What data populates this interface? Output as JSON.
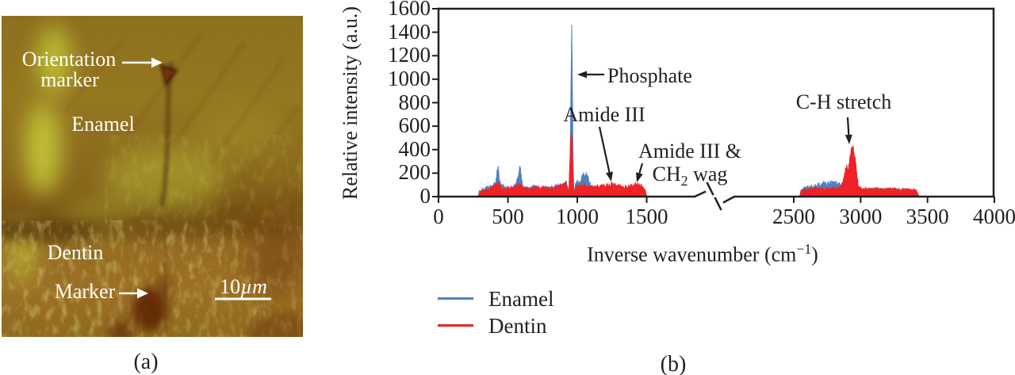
{
  "panel_a": {
    "caption": "(a)",
    "labels": {
      "orientation_line1": "Orientation",
      "orientation_line2": "marker",
      "enamel": "Enamel",
      "dentin": "Dentin",
      "marker": "Marker",
      "scale_value": "10",
      "scale_unit": "µm"
    },
    "palette": {
      "base_olive": "#8d6f1e",
      "highlight_yellow_green": "#c7cc3b",
      "shadow_brown": "#5c2406",
      "label_color": "#ffffff"
    }
  },
  "panel_b": {
    "caption": "(b)"
  },
  "chart_data": {
    "type": "line",
    "title": "",
    "xlabel": "Inverse wavenumber (cm−1)",
    "xlabel_parts": {
      "pre": "Inverse wavenumber (cm",
      "sup": "−1",
      "post": ")"
    },
    "ylabel": "Relative intensity (a.u.)",
    "ylim": [
      0,
      1600
    ],
    "yticks": [
      0,
      200,
      400,
      600,
      800,
      1000,
      1200,
      1400,
      1600
    ],
    "xticks": [
      0,
      500,
      1000,
      1500,
      2500,
      3000,
      3500,
      4000
    ],
    "axis_break": {
      "between": [
        1500,
        2500
      ]
    },
    "grid": false,
    "legend_position": "below-left",
    "legend": [
      {
        "name": "Enamel",
        "color": "#4f81bd"
      },
      {
        "name": "Dentin",
        "color": "#ee2227"
      }
    ],
    "annotations": [
      {
        "id": "phosphate",
        "label": "Phosphate",
        "target_cm": 960,
        "target_value": 1040
      },
      {
        "id": "amide3",
        "label": "Amide III",
        "target_cm": 1250,
        "target_value": 90
      },
      {
        "id": "amide3-ch2",
        "line1": "Amide III &",
        "line2_pre": "CH",
        "line2_sub": "2",
        "line2_post": " wag",
        "target_cm": 1430,
        "target_value": 90
      },
      {
        "id": "ch-stretch",
        "label": "C-H stretch",
        "target_cm": 2940,
        "target_value": 420
      }
    ],
    "series": [
      {
        "name": "Enamel",
        "color": "#4f81bd",
        "segments": [
          [
            [
              285,
              8
            ],
            [
              295,
              45
            ],
            [
              315,
              60
            ],
            [
              340,
              68
            ],
            [
              365,
              75
            ],
            [
              395,
              85
            ],
            [
              412,
              120
            ],
            [
              425,
              230
            ],
            [
              430,
              255
            ],
            [
              437,
              140
            ],
            [
              450,
              95
            ],
            [
              465,
              80
            ],
            [
              480,
              72
            ],
            [
              495,
              78
            ],
            [
              510,
              70
            ],
            [
              525,
              82
            ],
            [
              545,
              85
            ],
            [
              560,
              110
            ],
            [
              572,
              150
            ],
            [
              582,
              235
            ],
            [
              590,
              245
            ],
            [
              598,
              140
            ],
            [
              608,
              90
            ],
            [
              625,
              72
            ],
            [
              645,
              70
            ],
            [
              665,
              78
            ],
            [
              685,
              85
            ],
            [
              705,
              78
            ],
            [
              725,
              72
            ],
            [
              745,
              68
            ],
            [
              765,
              78
            ],
            [
              785,
              72
            ],
            [
              805,
              68
            ],
            [
              825,
              78
            ],
            [
              845,
              85
            ],
            [
              865,
              88
            ],
            [
              885,
              95
            ],
            [
              905,
              108
            ],
            [
              918,
              125
            ],
            [
              928,
              95
            ],
            [
              936,
              25
            ],
            [
              944,
              70
            ],
            [
              950,
              420
            ],
            [
              955,
              950
            ],
            [
              960,
              1440
            ],
            [
              964,
              1000
            ],
            [
              969,
              420
            ],
            [
              974,
              80
            ],
            [
              980,
              25
            ],
            [
              988,
              95
            ],
            [
              1000,
              120
            ],
            [
              1012,
              105
            ],
            [
              1025,
              135
            ],
            [
              1038,
              175
            ],
            [
              1048,
              205
            ],
            [
              1058,
              165
            ],
            [
              1068,
              190
            ],
            [
              1078,
              150
            ],
            [
              1088,
              110
            ],
            [
              1100,
              88
            ],
            [
              1115,
              75
            ],
            [
              1135,
              68
            ],
            [
              1155,
              65
            ],
            [
              1175,
              60
            ],
            [
              1195,
              58
            ],
            [
              1215,
              62
            ],
            [
              1235,
              68
            ],
            [
              1255,
              72
            ],
            [
              1275,
              68
            ],
            [
              1295,
              62
            ],
            [
              1315,
              58
            ],
            [
              1335,
              58
            ],
            [
              1355,
              58
            ],
            [
              1375,
              60
            ],
            [
              1395,
              62
            ],
            [
              1415,
              68
            ],
            [
              1435,
              72
            ],
            [
              1455,
              68
            ],
            [
              1475,
              58
            ],
            [
              1490,
              40
            ],
            [
              1500,
              8
            ]
          ],
          [
            [
              2545,
              8
            ],
            [
              2555,
              55
            ],
            [
              2575,
              65
            ],
            [
              2600,
              72
            ],
            [
              2630,
              80
            ],
            [
              2660,
              88
            ],
            [
              2690,
              95
            ],
            [
              2720,
              105
            ],
            [
              2750,
              112
            ],
            [
              2780,
              115
            ],
            [
              2800,
              112
            ],
            [
              2820,
              108
            ],
            [
              2845,
              100
            ],
            [
              2865,
              92
            ],
            [
              2885,
              82
            ],
            [
              2905,
              72
            ],
            [
              2925,
              66
            ],
            [
              2945,
              62
            ],
            [
              2965,
              60
            ],
            [
              2985,
              58
            ],
            [
              3010,
              58
            ],
            [
              3040,
              60
            ],
            [
              3070,
              62
            ],
            [
              3100,
              64
            ],
            [
              3130,
              60
            ],
            [
              3160,
              58
            ],
            [
              3190,
              55
            ],
            [
              3220,
              58
            ],
            [
              3250,
              60
            ],
            [
              3280,
              55
            ],
            [
              3310,
              55
            ],
            [
              3340,
              52
            ],
            [
              3370,
              52
            ],
            [
              3400,
              50
            ],
            [
              3420,
              42
            ],
            [
              3435,
              8
            ]
          ]
        ]
      },
      {
        "name": "Dentin",
        "color": "#ee2227",
        "segments": [
          [
            [
              292,
              6
            ],
            [
              300,
              35
            ],
            [
              320,
              52
            ],
            [
              345,
              60
            ],
            [
              370,
              68
            ],
            [
              395,
              80
            ],
            [
              412,
              100
            ],
            [
              425,
              128
            ],
            [
              432,
              115
            ],
            [
              445,
              85
            ],
            [
              460,
              68
            ],
            [
              475,
              62
            ],
            [
              490,
              66
            ],
            [
              505,
              70
            ],
            [
              520,
              74
            ],
            [
              535,
              78
            ],
            [
              550,
              82
            ],
            [
              565,
              90
            ],
            [
              578,
              100
            ],
            [
              590,
              88
            ],
            [
              605,
              72
            ],
            [
              622,
              64
            ],
            [
              640,
              62
            ],
            [
              658,
              68
            ],
            [
              676,
              74
            ],
            [
              694,
              78
            ],
            [
              712,
              74
            ],
            [
              730,
              70
            ],
            [
              748,
              72
            ],
            [
              766,
              70
            ],
            [
              784,
              68
            ],
            [
              802,
              72
            ],
            [
              820,
              76
            ],
            [
              838,
              80
            ],
            [
              856,
              84
            ],
            [
              874,
              88
            ],
            [
              892,
              92
            ],
            [
              908,
              100
            ],
            [
              920,
              105
            ],
            [
              928,
              80
            ],
            [
              934,
              18
            ],
            [
              941,
              85
            ],
            [
              947,
              300
            ],
            [
              952,
              470
            ],
            [
              957,
              550
            ],
            [
              961,
              480
            ],
            [
              966,
              280
            ],
            [
              971,
              90
            ],
            [
              977,
              16
            ],
            [
              985,
              80
            ],
            [
              996,
              88
            ],
            [
              1008,
              82
            ],
            [
              1020,
              78
            ],
            [
              1035,
              82
            ],
            [
              1050,
              88
            ],
            [
              1065,
              92
            ],
            [
              1080,
              86
            ],
            [
              1095,
              80
            ],
            [
              1110,
              78
            ],
            [
              1125,
              78
            ],
            [
              1140,
              80
            ],
            [
              1155,
              82
            ],
            [
              1170,
              84
            ],
            [
              1185,
              88
            ],
            [
              1200,
              92
            ],
            [
              1215,
              95
            ],
            [
              1230,
              98
            ],
            [
              1245,
              100
            ],
            [
              1258,
              96
            ],
            [
              1272,
              92
            ],
            [
              1286,
              88
            ],
            [
              1300,
              84
            ],
            [
              1315,
              80
            ],
            [
              1330,
              78
            ],
            [
              1345,
              78
            ],
            [
              1360,
              80
            ],
            [
              1375,
              84
            ],
            [
              1390,
              88
            ],
            [
              1405,
              92
            ],
            [
              1420,
              96
            ],
            [
              1435,
              100
            ],
            [
              1448,
              96
            ],
            [
              1462,
              88
            ],
            [
              1476,
              70
            ],
            [
              1490,
              45
            ],
            [
              1500,
              6
            ]
          ],
          [
            [
              2545,
              6
            ],
            [
              2555,
              45
            ],
            [
              2575,
              55
            ],
            [
              2600,
              58
            ],
            [
              2630,
              60
            ],
            [
              2660,
              62
            ],
            [
              2690,
              62
            ],
            [
              2720,
              64
            ],
            [
              2750,
              65
            ],
            [
              2780,
              66
            ],
            [
              2810,
              68
            ],
            [
              2835,
              72
            ],
            [
              2855,
              85
            ],
            [
              2870,
              120
            ],
            [
              2882,
              185
            ],
            [
              2890,
              235
            ],
            [
              2897,
              250
            ],
            [
              2904,
              235
            ],
            [
              2912,
              255
            ],
            [
              2920,
              320
            ],
            [
              2930,
              395
            ],
            [
              2938,
              420
            ],
            [
              2944,
              405
            ],
            [
              2950,
              375
            ],
            [
              2956,
              345
            ],
            [
              2962,
              300
            ],
            [
              2970,
              210
            ],
            [
              2978,
              130
            ],
            [
              2986,
              90
            ],
            [
              2995,
              72
            ],
            [
              3010,
              64
            ],
            [
              3030,
              60
            ],
            [
              3060,
              60
            ],
            [
              3090,
              60
            ],
            [
              3120,
              62
            ],
            [
              3150,
              60
            ],
            [
              3180,
              58
            ],
            [
              3210,
              60
            ],
            [
              3240,
              58
            ],
            [
              3270,
              60
            ],
            [
              3300,
              60
            ],
            [
              3330,
              58
            ],
            [
              3360,
              58
            ],
            [
              3390,
              56
            ],
            [
              3415,
              50
            ],
            [
              3435,
              6
            ]
          ]
        ]
      }
    ]
  }
}
